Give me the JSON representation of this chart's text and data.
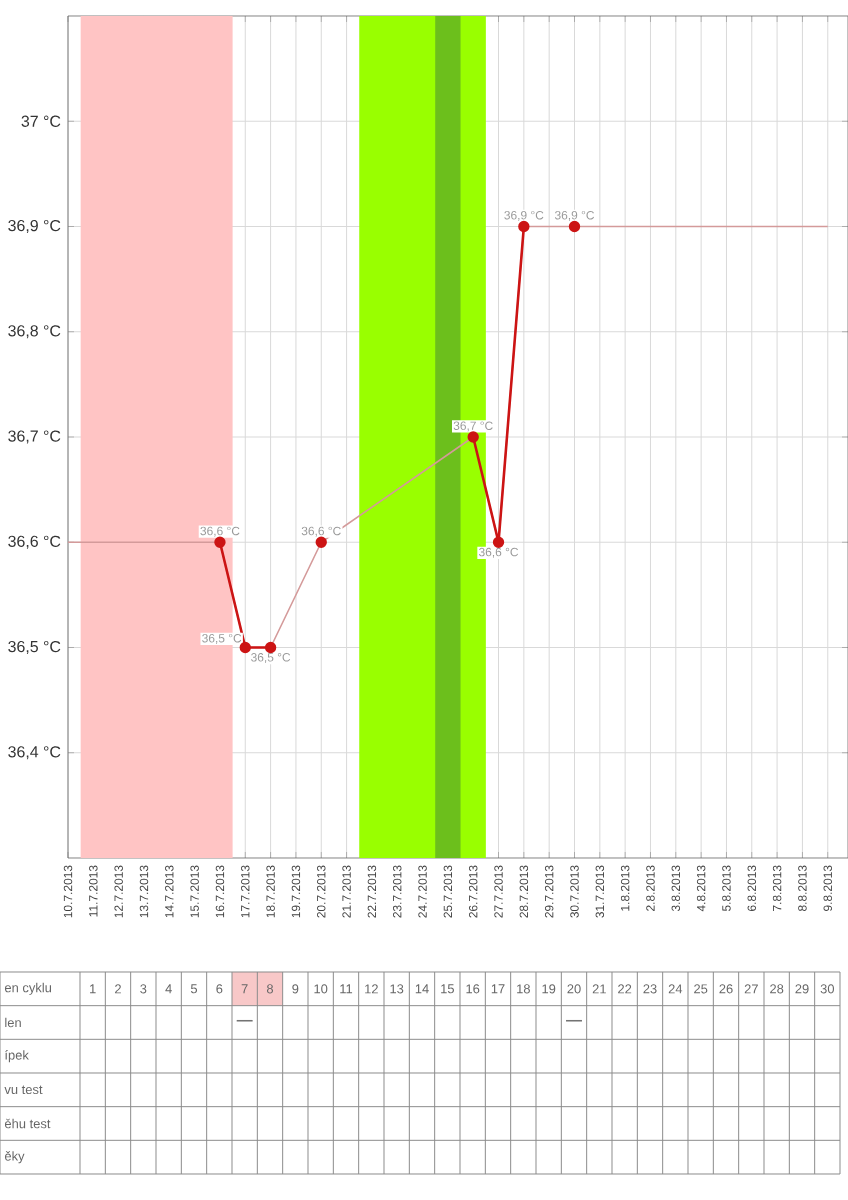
{
  "chart_data": [
    {
      "type": "line",
      "categories": [
        "10.7.2013",
        "11.7.2013",
        "12.7.2013",
        "13.7.2013",
        "14.7.2013",
        "15.7.2013",
        "16.7.2013",
        "17.7.2013",
        "18.7.2013",
        "19.7.2013",
        "20.7.2013",
        "21.7.2013",
        "22.7.2013",
        "23.7.2013",
        "24.7.2013",
        "25.7.2013",
        "26.7.2013",
        "27.7.2013",
        "28.7.2013",
        "29.7.2013",
        "30.7.2013",
        "31.7.2013",
        "1.8.2013",
        "2.8.2013",
        "3.8.2013",
        "4.8.2013",
        "5.8.2013",
        "6.8.2013",
        "7.8.2013",
        "8.8.2013",
        "9.8.2013"
      ],
      "ylim": [
        36.3,
        37.1
      ],
      "yticks": [
        {
          "value": 36.4,
          "label": "36,4 °C"
        },
        {
          "value": 36.5,
          "label": "36,5 °C"
        },
        {
          "value": 36.6,
          "label": "36,6 °C"
        },
        {
          "value": 36.7,
          "label": "36,7 °C"
        },
        {
          "value": 36.8,
          "label": "36,8 °C"
        },
        {
          "value": 36.9,
          "label": "36,9 °C"
        },
        {
          "value": 37.0,
          "label": "37 °C"
        }
      ],
      "grid": true,
      "bands": [
        {
          "axis": "x",
          "from": "11.7.2013",
          "to": "16.7.2013",
          "color": "#ffc4c4"
        },
        {
          "axis": "x",
          "from": "22.7.2013",
          "to": "26.7.2013",
          "color": "#99ff00"
        },
        {
          "axis": "x",
          "from": "25.7.2013",
          "to": "25.7.2013",
          "color": "#6cbf1c"
        }
      ],
      "series": [
        {
          "color": "#d49a9a",
          "marker": "none",
          "values": [
            36.6,
            null,
            null,
            null,
            null,
            null,
            36.6,
            36.5,
            36.5,
            null,
            36.6,
            null,
            null,
            null,
            null,
            null,
            36.7,
            36.6,
            36.9,
            null,
            36.9,
            null,
            null,
            null,
            null,
            null,
            null,
            null,
            null,
            null,
            36.9
          ]
        },
        {
          "color": "#cc1414",
          "marker": "circle",
          "values": [
            null,
            null,
            null,
            null,
            null,
            null,
            36.6,
            36.5,
            36.5,
            null,
            36.6,
            null,
            null,
            null,
            null,
            null,
            36.7,
            36.6,
            36.9,
            null,
            36.9,
            null,
            null,
            null,
            null,
            null,
            null,
            null,
            null,
            null,
            null
          ],
          "value_labels": [
            null,
            null,
            null,
            null,
            null,
            null,
            "36,6 °C",
            "36,5 °C",
            "36,5 °C",
            null,
            "36,6 °C",
            null,
            null,
            null,
            null,
            null,
            "36,7 °C",
            "36,6 °C",
            "36,9 °C",
            null,
            "36,9 °C",
            null,
            null,
            null,
            null,
            null,
            null,
            null,
            null,
            null,
            null
          ]
        }
      ]
    },
    {
      "type": "heatmap",
      "xlabel": "en cyklu",
      "categories": [
        "1",
        "2",
        "3",
        "4",
        "5",
        "6",
        "7",
        "8",
        "9",
        "10",
        "11",
        "12",
        "13",
        "14",
        "15",
        "16",
        "17",
        "18",
        "19",
        "20",
        "21",
        "22",
        "23",
        "24",
        "25",
        "26",
        "27",
        "28",
        "29",
        "30"
      ],
      "y_categories": [
        "len",
        "ípek",
        "vu test",
        "ěhu test",
        "ěky"
      ],
      "bands": [
        {
          "axis": "x",
          "from": "7",
          "to": "8",
          "color": "#f8c8c8"
        }
      ],
      "cells": [
        [
          null,
          null,
          null,
          null,
          null,
          null,
          null,
          null,
          null,
          null,
          null,
          null,
          null,
          null,
          null,
          null,
          null,
          null,
          null,
          null,
          null,
          null,
          null,
          null,
          null,
          null,
          null,
          null,
          null,
          null
        ],
        [
          null,
          null,
          null,
          null,
          null,
          null,
          null,
          null,
          null,
          null,
          null,
          null,
          null,
          null,
          null,
          null,
          null,
          null,
          null,
          null,
          null,
          null,
          null,
          null,
          null,
          null,
          null,
          null,
          null,
          null
        ],
        [
          null,
          null,
          null,
          null,
          null,
          null,
          null,
          null,
          null,
          null,
          null,
          null,
          null,
          null,
          null,
          null,
          null,
          null,
          null,
          null,
          null,
          null,
          null,
          null,
          null,
          null,
          null,
          null,
          null,
          null
        ],
        [
          null,
          null,
          null,
          null,
          null,
          null,
          null,
          null,
          null,
          null,
          null,
          null,
          null,
          null,
          null,
          null,
          null,
          null,
          null,
          null,
          null,
          null,
          null,
          null,
          null,
          null,
          null,
          null,
          null,
          null
        ],
        [
          null,
          null,
          null,
          null,
          null,
          null,
          null,
          null,
          null,
          null,
          null,
          null,
          null,
          null,
          null,
          null,
          null,
          null,
          null,
          null,
          null,
          null,
          null,
          null,
          null,
          null,
          null,
          null,
          null,
          null
        ]
      ],
      "cell_labels": [
        [
          null,
          null,
          null,
          null,
          null,
          null,
          "—",
          null,
          null,
          null,
          null,
          null,
          null,
          null,
          null,
          null,
          null,
          null,
          null,
          "—",
          null,
          null,
          null,
          null,
          null,
          null,
          null,
          null,
          null,
          null
        ],
        [
          null,
          null,
          null,
          null,
          null,
          null,
          null,
          null,
          null,
          null,
          null,
          null,
          null,
          null,
          null,
          null,
          null,
          null,
          null,
          null,
          null,
          null,
          null,
          null,
          null,
          null,
          null,
          null,
          null,
          null
        ],
        [
          null,
          null,
          null,
          null,
          null,
          null,
          null,
          null,
          null,
          null,
          null,
          null,
          null,
          null,
          null,
          null,
          null,
          null,
          null,
          null,
          null,
          null,
          null,
          null,
          null,
          null,
          null,
          null,
          null,
          null
        ],
        [
          null,
          null,
          null,
          null,
          null,
          null,
          null,
          null,
          null,
          null,
          null,
          null,
          null,
          null,
          null,
          null,
          null,
          null,
          null,
          null,
          null,
          null,
          null,
          null,
          null,
          null,
          null,
          null,
          null,
          null
        ],
        [
          null,
          null,
          null,
          null,
          null,
          null,
          null,
          null,
          null,
          null,
          null,
          null,
          null,
          null,
          null,
          null,
          null,
          null,
          null,
          null,
          null,
          null,
          null,
          null,
          null,
          null,
          null,
          null,
          null,
          null
        ]
      ]
    }
  ]
}
